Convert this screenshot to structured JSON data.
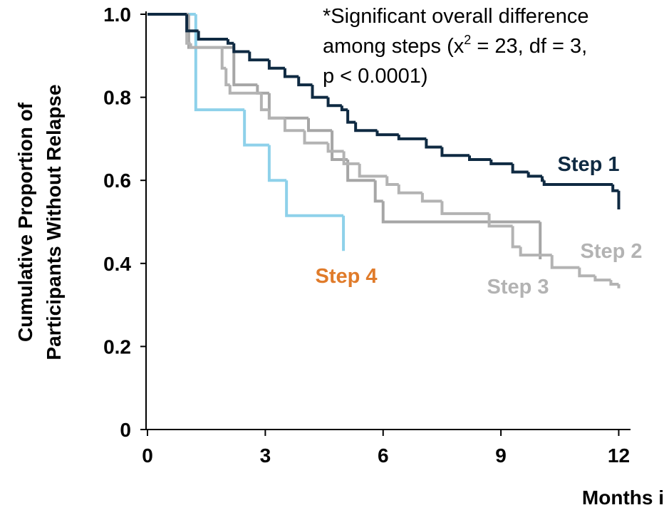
{
  "chart_data": {
    "type": "step",
    "xlabel": "Months i",
    "ylabel": [
      "Cumulative Proportion of",
      "Participants Without Relapse"
    ],
    "annotation": [
      [
        "*Significant overall difference"
      ],
      [
        "among steps (x",
        "2",
        " = 23, df = 3,"
      ],
      [
        "p < 0.0001)"
      ]
    ],
    "xlim": [
      0,
      12.3
    ],
    "ylim": [
      0,
      1
    ],
    "xticks": [
      0,
      3,
      6,
      9,
      12
    ],
    "yticks": [
      0,
      0.2,
      0.4,
      0.6,
      0.8,
      {
        "value": 1,
        "label": "1.0"
      }
    ],
    "series": [
      {
        "name": "Step 1",
        "color": "#0f2a42",
        "label_color": "#0f2a42",
        "x": [
          0,
          1.0,
          1.3,
          2.05,
          2.2,
          2.6,
          3.1,
          3.5,
          3.85,
          4.2,
          4.6,
          4.95,
          5.1,
          5.3,
          5.85,
          6.4,
          7.1,
          7.5,
          8.2,
          8.75,
          9.3,
          9.7,
          10.05,
          10.1,
          11.85,
          12.0,
          12.0
        ],
        "values": [
          1.0,
          0.96,
          0.94,
          0.93,
          0.91,
          0.89,
          0.87,
          0.85,
          0.83,
          0.8,
          0.78,
          0.77,
          0.74,
          0.72,
          0.71,
          0.7,
          0.68,
          0.66,
          0.65,
          0.64,
          0.62,
          0.61,
          0.6,
          0.59,
          0.575,
          0.56,
          0.53
        ]
      },
      {
        "name": "Step 2",
        "color": "#b3b3b3",
        "label_color": "#b3b3b3",
        "x": [
          0,
          1.0,
          1.1,
          1.9,
          2.0,
          2.1,
          2.9,
          3.1,
          3.5,
          4.0,
          4.6,
          5.0,
          5.4,
          6.1,
          6.4,
          7.0,
          7.5,
          8.7,
          9.3,
          9.5,
          10.3,
          11.0,
          11.4,
          11.8,
          12.0
        ],
        "values": [
          1.0,
          0.93,
          0.92,
          0.87,
          0.83,
          0.81,
          0.77,
          0.75,
          0.72,
          0.69,
          0.67,
          0.64,
          0.61,
          0.59,
          0.57,
          0.55,
          0.52,
          0.49,
          0.44,
          0.42,
          0.39,
          0.37,
          0.36,
          0.35,
          0.34
        ]
      },
      {
        "name": "Step 3",
        "color": "#a6a6a6",
        "label_color": "#b3b3b3",
        "x": [
          0,
          1.05,
          2.2,
          2.8,
          3.1,
          4.1,
          4.7,
          5.1,
          5.8,
          6.0,
          10.0
        ],
        "values": [
          1.0,
          0.92,
          0.83,
          0.81,
          0.75,
          0.72,
          0.65,
          0.6,
          0.55,
          0.5,
          0.41
        ]
      },
      {
        "name": "Step 4",
        "color": "#8ed1ea",
        "label_color": "#e07b2a",
        "x": [
          0,
          1.23,
          2.47,
          3.1,
          3.54,
          4.99
        ],
        "values": [
          1.0,
          0.77,
          0.685,
          0.6,
          0.515,
          0.43
        ]
      }
    ]
  }
}
